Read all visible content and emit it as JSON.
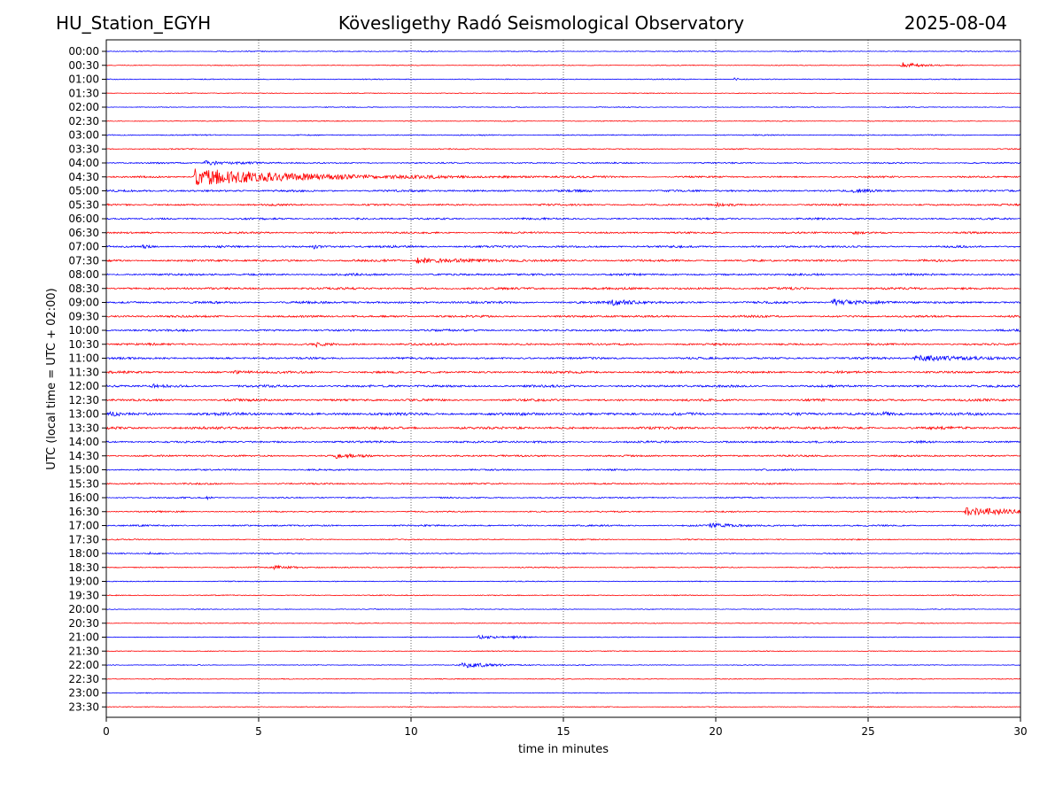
{
  "header": {
    "station": "HU_Station_EGYH",
    "observatory": "Kövesligethy Radó Seismological Observatory",
    "date": "2025-08-04"
  },
  "chart_data": {
    "type": "line",
    "title": "Kövesligethy Radó Seismological Observatory",
    "xlabel": "time in minutes",
    "ylabel": "UTC (local time = UTC + 02:00)",
    "xlim": [
      0,
      30
    ],
    "x_ticks": [
      "0",
      "5",
      "10",
      "15",
      "20",
      "25",
      "30"
    ],
    "x_tick_values": [
      0,
      5,
      10,
      15,
      20,
      25,
      30
    ],
    "grid": "vertical dotted lines at x ticks",
    "row_labels": [
      "00:00",
      "00:30",
      "01:00",
      "01:30",
      "02:00",
      "02:30",
      "03:00",
      "03:30",
      "04:00",
      "04:30",
      "05:00",
      "05:30",
      "06:00",
      "06:30",
      "07:00",
      "07:30",
      "08:00",
      "08:30",
      "09:00",
      "09:30",
      "10:00",
      "10:30",
      "11:00",
      "11:30",
      "12:00",
      "12:30",
      "13:00",
      "13:30",
      "14:00",
      "14:30",
      "15:00",
      "15:30",
      "16:00",
      "16:30",
      "17:00",
      "17:30",
      "18:00",
      "18:30",
      "19:00",
      "19:30",
      "20:00",
      "20:30",
      "21:00",
      "21:30",
      "22:00",
      "22:30",
      "23:00",
      "23:30"
    ],
    "trace_colors": [
      "#0000ff",
      "#ff0000"
    ],
    "noise_level": [
      0.4,
      0.35,
      0.4,
      0.35,
      0.35,
      0.35,
      0.5,
      0.45,
      0.6,
      0.75,
      0.9,
      0.8,
      0.8,
      0.8,
      0.9,
      0.9,
      0.9,
      1.0,
      1.0,
      0.9,
      0.9,
      0.9,
      0.9,
      1.0,
      1.0,
      1.0,
      1.2,
      1.1,
      0.9,
      0.8,
      0.7,
      0.7,
      0.6,
      0.6,
      0.7,
      0.5,
      0.5,
      0.5,
      0.4,
      0.4,
      0.35,
      0.35,
      0.35,
      0.35,
      0.35,
      0.35,
      0.35,
      0.35
    ],
    "events": [
      {
        "row": "00:30",
        "x": 26.1,
        "amp": 3.5,
        "dur": 0.8
      },
      {
        "row": "01:00",
        "x": 20.6,
        "amp": 1.5,
        "dur": 0.3
      },
      {
        "row": "04:00",
        "x": 3.2,
        "amp": 2.2,
        "dur": 1.5
      },
      {
        "row": "04:30",
        "x": 2.9,
        "amp": 9.5,
        "dur": 4.5
      },
      {
        "row": "05:00",
        "x": 24.5,
        "amp": 1.8,
        "dur": 0.5
      },
      {
        "row": "05:30",
        "x": 20.0,
        "amp": 1.6,
        "dur": 0.5
      },
      {
        "row": "06:30",
        "x": 24.5,
        "amp": 1.8,
        "dur": 0.4
      },
      {
        "row": "07:00",
        "x": 1.2,
        "amp": 1.8,
        "dur": 0.3
      },
      {
        "row": "07:00",
        "x": 6.8,
        "amp": 1.8,
        "dur": 0.3
      },
      {
        "row": "07:30",
        "x": 10.2,
        "amp": 3.0,
        "dur": 2.0
      },
      {
        "row": "09:00",
        "x": 16.5,
        "amp": 3.8,
        "dur": 0.8
      },
      {
        "row": "09:00",
        "x": 23.8,
        "amp": 4.0,
        "dur": 1.0
      },
      {
        "row": "10:30",
        "x": 6.9,
        "amp": 2.0,
        "dur": 0.4
      },
      {
        "row": "11:00",
        "x": 26.5,
        "amp": 3.5,
        "dur": 2.0
      },
      {
        "row": "11:30",
        "x": 4.2,
        "amp": 2.0,
        "dur": 0.5
      },
      {
        "row": "12:00",
        "x": 1.5,
        "amp": 2.5,
        "dur": 0.4
      },
      {
        "row": "13:00",
        "x": 0.1,
        "amp": 2.5,
        "dur": 0.3
      },
      {
        "row": "13:00",
        "x": 25.5,
        "amp": 2.0,
        "dur": 0.5
      },
      {
        "row": "14:30",
        "x": 7.5,
        "amp": 2.8,
        "dur": 0.8
      },
      {
        "row": "16:00",
        "x": 3.3,
        "amp": 1.5,
        "dur": 0.2
      },
      {
        "row": "16:30",
        "x": 28.2,
        "amp": 5.5,
        "dur": 1.8
      },
      {
        "row": "17:00",
        "x": 19.8,
        "amp": 2.0,
        "dur": 1.2
      },
      {
        "row": "18:00",
        "x": 1.4,
        "amp": 1.5,
        "dur": 0.3
      },
      {
        "row": "18:30",
        "x": 5.5,
        "amp": 1.5,
        "dur": 1.2
      },
      {
        "row": "21:00",
        "x": 12.2,
        "amp": 1.8,
        "dur": 1.0
      },
      {
        "row": "21:00",
        "x": 13.3,
        "amp": 1.5,
        "dur": 0.4
      },
      {
        "row": "22:00",
        "x": 11.6,
        "amp": 3.2,
        "dur": 1.5
      }
    ]
  }
}
